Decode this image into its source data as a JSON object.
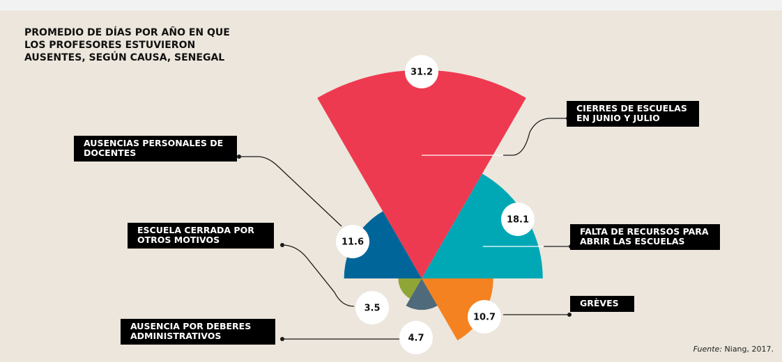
{
  "chart_data": {
    "type": "polar_area",
    "title": "PROMEDIO DE DÍAS POR AÑO EN QUE LOS PROFESORES ESTUVIERON AUSENTES, SEGÚN CAUSA, SENEGAL",
    "categories": [
      "CIERRES DE ESCUELAS EN JUNIO Y JULIO",
      "FALTA DE RECURSOS PARA ABRIR LAS ESCUELAS",
      "GRÈVES",
      "AUSENCIA POR DEBERES ADMINISTRATIVOS",
      "ESCUELA CERRADA POR OTROS MOTIVOS",
      "AUSENCIAS PERSONALES DE DOCENTES"
    ],
    "values": [
      31.2,
      18.1,
      10.7,
      4.7,
      3.5,
      11.6
    ],
    "colors": [
      "#ee3a50",
      "#00a8b5",
      "#f58220",
      "#4f6a7a",
      "#8fa637",
      "#006699"
    ],
    "source": {
      "label": "Fuente:",
      "text": "Niang, 2017."
    }
  }
}
